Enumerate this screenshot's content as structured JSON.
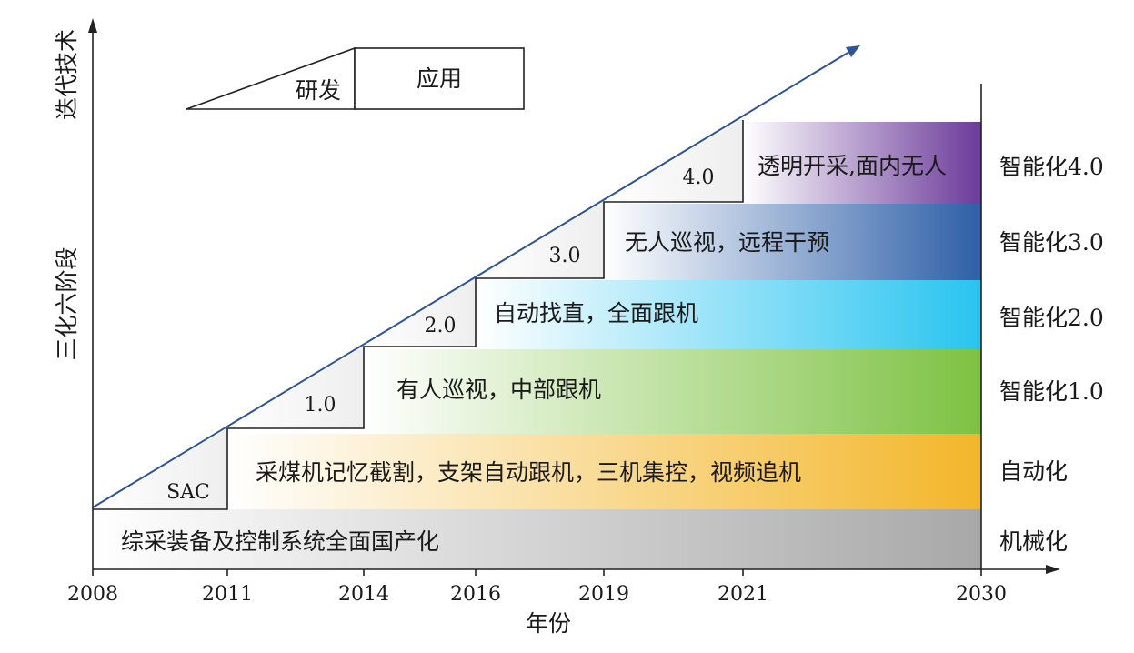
{
  "y_axis": {
    "label_upper": "迭代技术",
    "label_lower": "三化六阶段"
  },
  "x_axis": {
    "label": "年份",
    "ticks": [
      "2008",
      "2011",
      "2014",
      "2016",
      "2019",
      "2021",
      "2030"
    ]
  },
  "legend": {
    "research": "研发",
    "application": "应用"
  },
  "bands": [
    {
      "level": "机械化",
      "text": "综采装备及控制系统全面国产化",
      "step": "",
      "start": "2008",
      "color_end": "#a8a8a8"
    },
    {
      "level": "自动化",
      "text": "采煤机记忆截割，支架自动跟机，三机集控，视频追机",
      "step": "SAC",
      "start": "2011",
      "color_end": "#f3b62a"
    },
    {
      "level": "智能化1.0",
      "text": "有人巡视，中部跟机",
      "step": "1.0",
      "start": "2014",
      "color_end": "#7dc242"
    },
    {
      "level": "智能化2.0",
      "text": "自动找直，全面跟机",
      "step": "2.0",
      "start": "2016",
      "color_end": "#28c4f0"
    },
    {
      "level": "智能化3.0",
      "text": "无人巡视，远程干预",
      "step": "3.0",
      "start": "2019",
      "color_end": "#2e5fa8"
    },
    {
      "level": "智能化4.0",
      "text": "透明开采,面内无人",
      "step": "4.0",
      "start": "2021",
      "color_end": "#6b3a9a"
    }
  ]
}
